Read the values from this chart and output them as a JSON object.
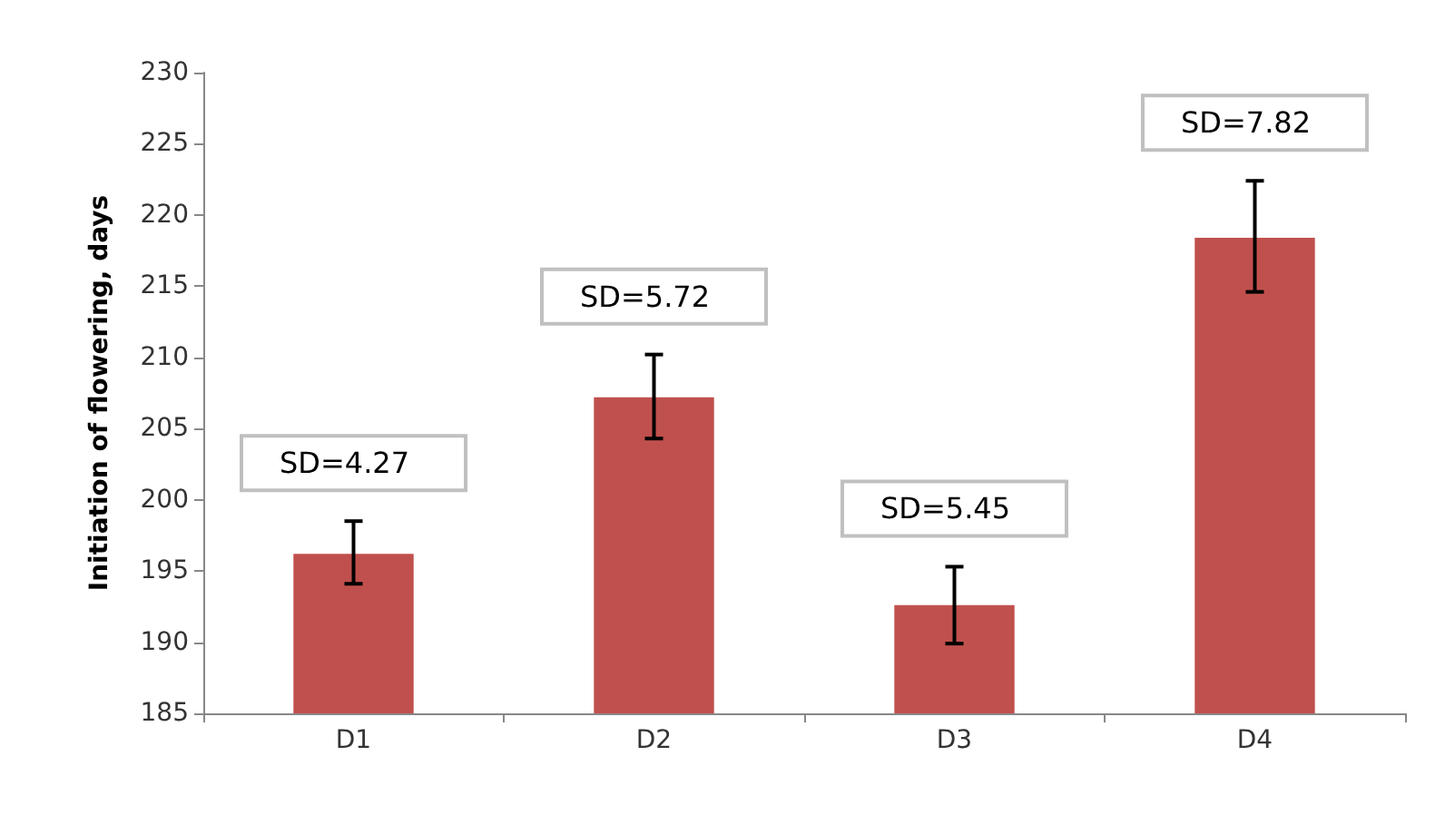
{
  "chart_data": {
    "type": "bar",
    "ylabel": "Initiation of flowering, days",
    "categories": [
      "D1",
      "D2",
      "D3",
      "D4"
    ],
    "values": [
      196.2,
      207.2,
      192.6,
      218.4
    ],
    "errors": [
      [
        194.1,
        198.5
      ],
      [
        204.3,
        210.2
      ],
      [
        189.9,
        195.3
      ],
      [
        214.6,
        222.4
      ]
    ],
    "color": "#c0504d",
    "ylim": [
      185,
      230
    ],
    "yticks": [
      185,
      190,
      195,
      200,
      205,
      210,
      215,
      220,
      225,
      230
    ],
    "grid": false,
    "annotations": [
      "SD=4.27",
      "SD=5.72",
      "SD=5.45",
      "SD=7.82"
    ]
  }
}
